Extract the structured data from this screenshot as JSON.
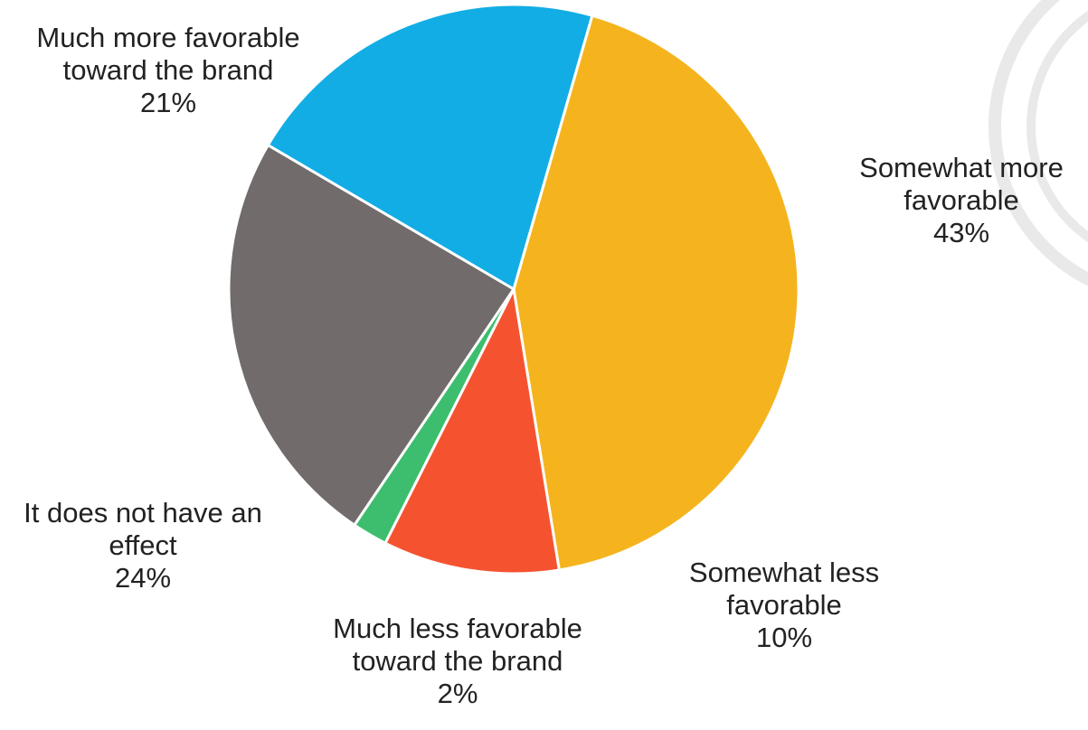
{
  "chart_data": {
    "type": "pie",
    "title": "",
    "start_angle_deg": 16,
    "direction": "clockwise",
    "slices": [
      {
        "label_lines": [
          "Somewhat more",
          "favorable"
        ],
        "value": 43,
        "value_label": "43%",
        "color": "#F5B41E"
      },
      {
        "label_lines": [
          "Somewhat less",
          "favorable"
        ],
        "value": 10,
        "value_label": "10%",
        "color": "#F55330"
      },
      {
        "label_lines": [
          "Much less favorable",
          "toward the brand"
        ],
        "value": 2,
        "value_label": "2%",
        "color": "#3DBE6E"
      },
      {
        "label_lines": [
          "It does not have an",
          "effect"
        ],
        "value": 24,
        "value_label": "24%",
        "color": "#716B6B"
      },
      {
        "label_lines": [
          "Much more favorable",
          "toward the brand"
        ],
        "value": 21,
        "value_label": "21%",
        "color": "#12ADE4"
      }
    ]
  }
}
